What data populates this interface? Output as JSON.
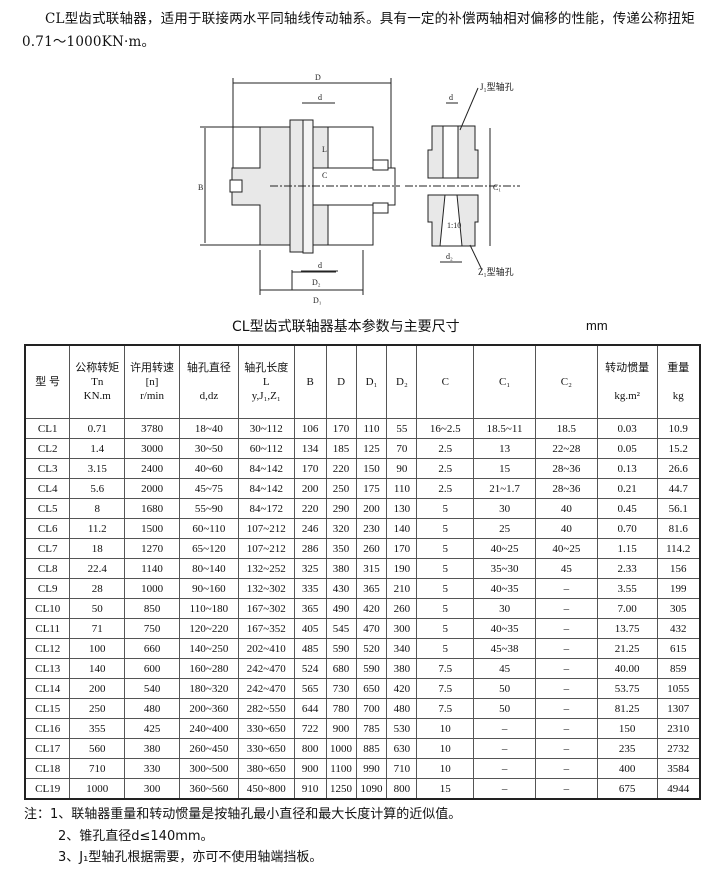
{
  "intro": "CL型齿式联轴器，适用于联接两水平同轴线传动轴系。具有一定的补偿两轴相对偏移的性能，传递公称扭矩0.71～1000KN·m。",
  "drawing": {
    "labels": {
      "D": "D",
      "d": "d",
      "B": "B",
      "L": "L",
      "C": "C",
      "D2": "D₂",
      "D1": "D₁",
      "d_bottom": "d",
      "dz": "d₂",
      "taper": "1:10",
      "J1": "J₁型轴孔",
      "Z1": "Z₁型轴孔",
      "C1": "C₁",
      "C2": "C₂"
    }
  },
  "table_title": "CL型齿式联轴器基本参数与主要尺寸",
  "unit": "mm",
  "headers": [
    [
      "型 号"
    ],
    [
      "公称转矩",
      "Tn",
      "KN.m"
    ],
    [
      "许用转速",
      "[n]",
      "r/min"
    ],
    [
      "轴孔直径",
      "",
      "d,dz"
    ],
    [
      "轴孔长度",
      "L",
      "y,J₁,Z₁"
    ],
    [
      "B"
    ],
    [
      "D"
    ],
    [
      "D₁"
    ],
    [
      "D₂"
    ],
    [
      "C"
    ],
    [
      "C₁"
    ],
    [
      "C₂"
    ],
    [
      "转动惯量",
      "",
      "kg.m²"
    ],
    [
      "重量",
      "",
      "kg"
    ]
  ],
  "rows": [
    [
      "CL1",
      "0.71",
      "3780",
      "18~40",
      "30~112",
      "106",
      "170",
      "110",
      "55",
      "16~2.5",
      "18.5~11",
      "18.5",
      "0.03",
      "10.9"
    ],
    [
      "CL2",
      "1.4",
      "3000",
      "30~50",
      "60~112",
      "134",
      "185",
      "125",
      "70",
      "2.5",
      "13",
      "22~28",
      "0.05",
      "15.2"
    ],
    [
      "CL3",
      "3.15",
      "2400",
      "40~60",
      "84~142",
      "170",
      "220",
      "150",
      "90",
      "2.5",
      "15",
      "28~36",
      "0.13",
      "26.6"
    ],
    [
      "CL4",
      "5.6",
      "2000",
      "45~75",
      "84~142",
      "200",
      "250",
      "175",
      "110",
      "2.5",
      "21~1.7",
      "28~36",
      "0.21",
      "44.7"
    ],
    [
      "CL5",
      "8",
      "1680",
      "55~90",
      "84~172",
      "220",
      "290",
      "200",
      "130",
      "5",
      "30",
      "40",
      "0.45",
      "56.1"
    ],
    [
      "CL6",
      "11.2",
      "1500",
      "60~110",
      "107~212",
      "246",
      "320",
      "230",
      "140",
      "5",
      "25",
      "40",
      "0.70",
      "81.6"
    ],
    [
      "CL7",
      "18",
      "1270",
      "65~120",
      "107~212",
      "286",
      "350",
      "260",
      "170",
      "5",
      "40~25",
      "40~25",
      "1.15",
      "114.2"
    ],
    [
      "CL8",
      "22.4",
      "1140",
      "80~140",
      "132~252",
      "325",
      "380",
      "315",
      "190",
      "5",
      "35~30",
      "45",
      "2.33",
      "156"
    ],
    [
      "CL9",
      "28",
      "1000",
      "90~160",
      "132~302",
      "335",
      "430",
      "365",
      "210",
      "5",
      "40~35",
      "–",
      "3.55",
      "199"
    ],
    [
      "CL10",
      "50",
      "850",
      "110~180",
      "167~302",
      "365",
      "490",
      "420",
      "260",
      "5",
      "30",
      "–",
      "7.00",
      "305"
    ],
    [
      "CL11",
      "71",
      "750",
      "120~220",
      "167~352",
      "405",
      "545",
      "470",
      "300",
      "5",
      "40~35",
      "–",
      "13.75",
      "432"
    ],
    [
      "CL12",
      "100",
      "660",
      "140~250",
      "202~410",
      "485",
      "590",
      "520",
      "340",
      "5",
      "45~38",
      "–",
      "21.25",
      "615"
    ],
    [
      "CL13",
      "140",
      "600",
      "160~280",
      "242~470",
      "524",
      "680",
      "590",
      "380",
      "7.5",
      "45",
      "–",
      "40.00",
      "859"
    ],
    [
      "CL14",
      "200",
      "540",
      "180~320",
      "242~470",
      "565",
      "730",
      "650",
      "420",
      "7.5",
      "50",
      "–",
      "53.75",
      "1055"
    ],
    [
      "CL15",
      "250",
      "480",
      "200~360",
      "282~550",
      "644",
      "780",
      "700",
      "480",
      "7.5",
      "50",
      "–",
      "81.25",
      "1307"
    ],
    [
      "CL16",
      "355",
      "425",
      "240~400",
      "330~650",
      "722",
      "900",
      "785",
      "530",
      "10",
      "–",
      "–",
      "150",
      "2310"
    ],
    [
      "CL17",
      "560",
      "380",
      "260~450",
      "330~650",
      "800",
      "1000",
      "885",
      "630",
      "10",
      "–",
      "–",
      "235",
      "2732"
    ],
    [
      "CL18",
      "710",
      "330",
      "300~500",
      "380~650",
      "900",
      "1100",
      "990",
      "710",
      "10",
      "–",
      "–",
      "400",
      "3584"
    ],
    [
      "CL19",
      "1000",
      "300",
      "360~560",
      "450~800",
      "910",
      "1250",
      "1090",
      "800",
      "15",
      "–",
      "–",
      "675",
      "4944"
    ]
  ],
  "notes": [
    "注：1、联轴器重量和转动惯量是按轴孔最小直径和最大长度计算的近似值。",
    "2、锥孔直径d≤140mm。",
    "3、J₁型轴孔根据需要，亦可不使用轴端挡板。"
  ]
}
